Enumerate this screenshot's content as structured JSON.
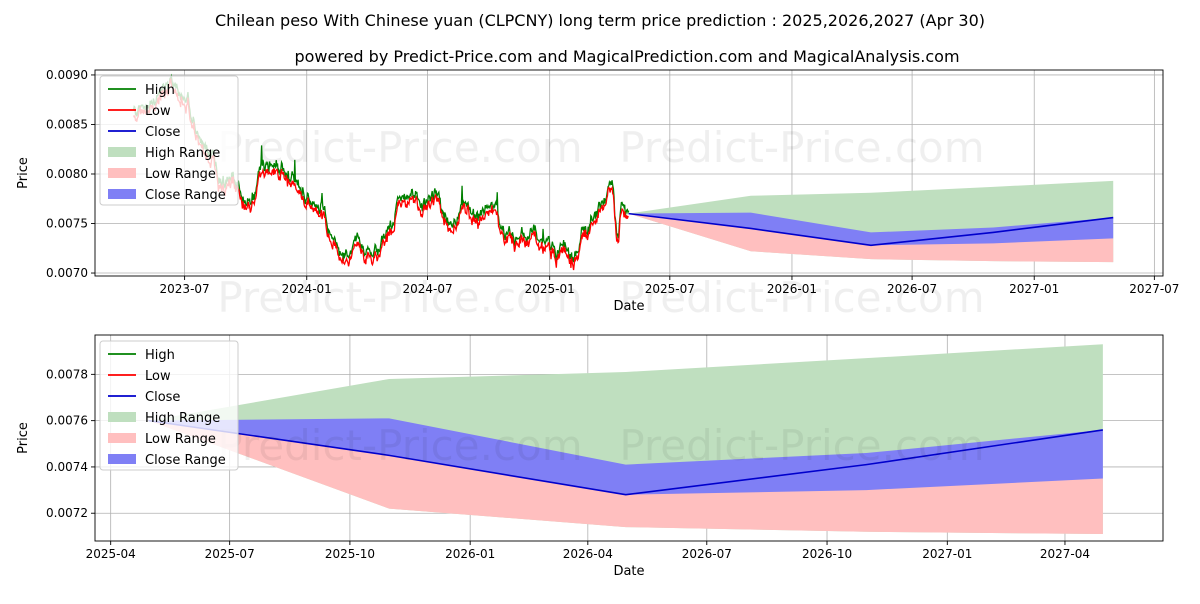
{
  "title": "Chilean peso With Chinese yuan (CLPCNY) long term price prediction : 2025,2026,2027 (Apr 30)",
  "subtitle": "powered by Predict-Price.com and MagicalPrediction.com and MagicalAnalysis.com",
  "watermark": "Predict-Price.com",
  "colors": {
    "high": "#008000",
    "low": "#ff0000",
    "close": "#0000cc",
    "high_range": "#bfdfbf",
    "low_range": "#ffbfbf",
    "close_range": "#7f7ff5",
    "grid": "#b0b0b0"
  },
  "chart_data": [
    {
      "type": "line",
      "name": "history-and-forecast",
      "xlabel": "Date",
      "ylabel": "Price",
      "xlim": [
        "2023-02-16",
        "2027-07-14"
      ],
      "ylim": [
        0.00697,
        0.00905
      ],
      "x_ticks": [
        "2023-07",
        "2024-01",
        "2024-07",
        "2025-01",
        "2025-07",
        "2026-01",
        "2026-07",
        "2027-01",
        "2027-07"
      ],
      "y_ticks": [
        "0.0070",
        "0.0075",
        "0.0080",
        "0.0085",
        "0.0090"
      ],
      "grid": true,
      "legend_position": "top-left",
      "legend": [
        "High",
        "Low",
        "Close",
        "High Range",
        "Low Range",
        "Close Range"
      ],
      "history": {
        "anchors": [
          [
            "2023-04-15",
            0.00858
          ],
          [
            "2023-05-15",
            0.00872
          ],
          [
            "2023-06-15",
            0.00888
          ],
          [
            "2023-07-01",
            0.0088
          ],
          [
            "2023-07-20",
            0.00838
          ],
          [
            "2023-08-10",
            0.00818
          ],
          [
            "2023-08-25",
            0.0079
          ],
          [
            "2023-09-10",
            0.00795
          ],
          [
            "2023-10-05",
            0.00765
          ],
          [
            "2023-10-25",
            0.00798
          ],
          [
            "2023-11-20",
            0.00805
          ],
          [
            "2023-12-10",
            0.00795
          ],
          [
            "2024-01-01",
            0.0077
          ],
          [
            "2024-01-20",
            0.00762
          ],
          [
            "2024-02-10",
            0.0073
          ],
          [
            "2024-03-01",
            0.00712
          ],
          [
            "2024-03-20",
            0.0073
          ],
          [
            "2024-04-10",
            0.00716
          ],
          [
            "2024-05-01",
            0.00738
          ],
          [
            "2024-05-20",
            0.0077
          ],
          [
            "2024-06-05",
            0.00778
          ],
          [
            "2024-06-25",
            0.00765
          ],
          [
            "2024-07-10",
            0.0078
          ],
          [
            "2024-07-25",
            0.0076
          ],
          [
            "2024-08-10",
            0.00748
          ],
          [
            "2024-08-28",
            0.00765
          ],
          [
            "2024-09-15",
            0.00752
          ],
          [
            "2024-10-05",
            0.00762
          ],
          [
            "2024-10-25",
            0.00742
          ],
          [
            "2024-11-15",
            0.00735
          ],
          [
            "2024-12-05",
            0.00735
          ],
          [
            "2024-12-25",
            0.00728
          ],
          [
            "2025-01-15",
            0.00722
          ],
          [
            "2025-02-05",
            0.00715
          ],
          [
            "2025-02-25",
            0.00742
          ],
          [
            "2025-03-10",
            0.00762
          ],
          [
            "2025-03-25",
            0.00772
          ],
          [
            "2025-04-05",
            0.00782
          ],
          [
            "2025-04-12",
            0.00735
          ],
          [
            "2025-04-20",
            0.0076
          ],
          [
            "2025-04-30",
            0.0076
          ]
        ]
      },
      "forecast": {
        "dates": [
          "2025-04-30",
          "2025-10-31",
          "2026-04-30",
          "2026-10-31",
          "2027-04-30"
        ],
        "close": [
          0.0076,
          0.00745,
          0.00728,
          0.00741,
          0.00756
        ],
        "high_range": {
          "upper": [
            0.0076,
            0.00778,
            0.00781,
            0.00787,
            0.00793
          ],
          "lower": [
            0.0076,
            0.00722,
            0.00714,
            0.00712,
            0.00711
          ]
        },
        "low_range": {
          "upper": [
            0.0076,
            0.00745,
            0.00728,
            0.00733,
            0.00735
          ],
          "lower": [
            0.0076,
            0.00722,
            0.00714,
            0.00712,
            0.00711
          ]
        },
        "close_range": {
          "upper": [
            0.0076,
            0.00761,
            0.00741,
            0.00746,
            0.00756
          ],
          "lower": [
            0.0076,
            0.00745,
            0.00728,
            0.0073,
            0.00735
          ]
        }
      }
    },
    {
      "type": "line",
      "name": "forecast-zoom",
      "xlabel": "Date",
      "ylabel": "Price",
      "xlim": [
        "2025-03-20",
        "2027-06-15"
      ],
      "ylim": [
        0.00708,
        0.00797
      ],
      "x_ticks": [
        "2025-04",
        "2025-07",
        "2025-10",
        "2026-01",
        "2026-04",
        "2026-07",
        "2026-10",
        "2027-01",
        "2027-04"
      ],
      "y_ticks": [
        "0.0072",
        "0.0074",
        "0.0076",
        "0.0078"
      ],
      "grid": true,
      "legend_position": "top-left",
      "legend": [
        "High",
        "Low",
        "Close",
        "High Range",
        "Low Range",
        "Close Range"
      ]
    }
  ]
}
